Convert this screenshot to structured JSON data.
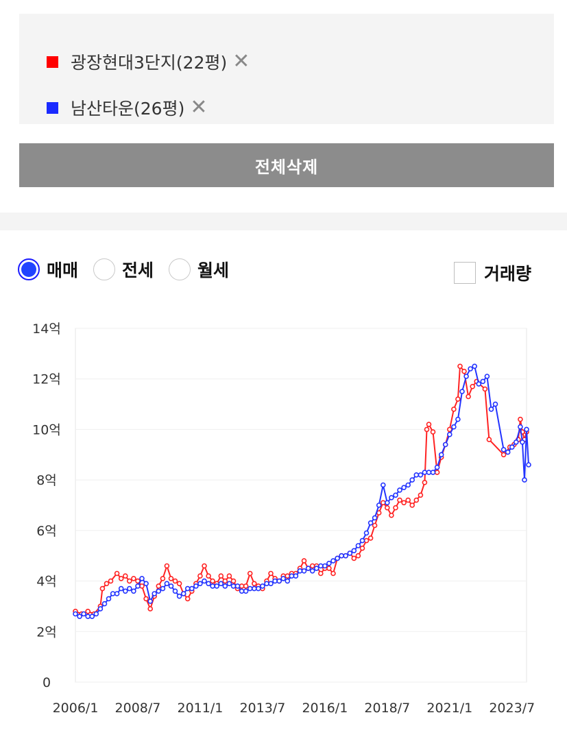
{
  "legend": {
    "items": [
      {
        "label": "광장현대3단지(22평)",
        "color": "#ff0000",
        "close_icon": "close-icon"
      },
      {
        "label": "남산타운(26평)",
        "color": "#1a2aff",
        "close_icon": "close-icon"
      }
    ]
  },
  "delete_all_label": "전체삭제",
  "trade_types": {
    "options": [
      "매매",
      "전세",
      "월세"
    ],
    "selected": "매매"
  },
  "volume_label": "거래량",
  "chart_data": {
    "type": "line",
    "xlabel": "",
    "ylabel": "",
    "x_ticks": [
      "2006/1",
      "2008/7",
      "2011/1",
      "2013/7",
      "2016/1",
      "2018/7",
      "2021/1",
      "2023/7"
    ],
    "y_ticks": [
      "0",
      "2억",
      "4억",
      "6억",
      "8억",
      "10억",
      "12억",
      "14억"
    ],
    "ylim": [
      0,
      14
    ],
    "xlim": [
      "2006/1",
      "2024/2"
    ],
    "grid": true,
    "y_unit": "억",
    "series": [
      {
        "name": "광장현대3단지(22평)",
        "color": "#ff2222",
        "points": [
          [
            "2006/1",
            2.8
          ],
          [
            "2006/4",
            2.7
          ],
          [
            "2006/7",
            2.8
          ],
          [
            "2006/10",
            2.7
          ],
          [
            "2007/1",
            3.0
          ],
          [
            "2007/2",
            3.7
          ],
          [
            "2007/4",
            3.9
          ],
          [
            "2007/6",
            4.0
          ],
          [
            "2007/9",
            4.3
          ],
          [
            "2007/11",
            4.1
          ],
          [
            "2008/1",
            4.2
          ],
          [
            "2008/3",
            4.0
          ],
          [
            "2008/5",
            4.1
          ],
          [
            "2008/7",
            4.0
          ],
          [
            "2008/9",
            3.8
          ],
          [
            "2008/11",
            3.3
          ],
          [
            "2009/1",
            2.9
          ],
          [
            "2009/3",
            3.4
          ],
          [
            "2009/5",
            3.8
          ],
          [
            "2009/7",
            4.1
          ],
          [
            "2009/9",
            4.6
          ],
          [
            "2009/11",
            4.1
          ],
          [
            "2010/1",
            4.0
          ],
          [
            "2010/3",
            3.9
          ],
          [
            "2010/5",
            3.5
          ],
          [
            "2010/7",
            3.3
          ],
          [
            "2010/9",
            3.6
          ],
          [
            "2010/11",
            3.9
          ],
          [
            "2011/1",
            4.2
          ],
          [
            "2011/3",
            4.6
          ],
          [
            "2011/5",
            4.2
          ],
          [
            "2011/7",
            4.0
          ],
          [
            "2011/9",
            3.9
          ],
          [
            "2011/11",
            4.2
          ],
          [
            "2012/1",
            4.0
          ],
          [
            "2012/3",
            4.2
          ],
          [
            "2012/5",
            4.0
          ],
          [
            "2012/7",
            3.7
          ],
          [
            "2012/9",
            3.8
          ],
          [
            "2012/11",
            3.8
          ],
          [
            "2013/1",
            4.3
          ],
          [
            "2013/3",
            3.9
          ],
          [
            "2013/5",
            3.8
          ],
          [
            "2013/7",
            3.7
          ],
          [
            "2013/9",
            4.0
          ],
          [
            "2013/11",
            4.3
          ],
          [
            "2014/1",
            4.1
          ],
          [
            "2014/3",
            4.0
          ],
          [
            "2014/5",
            4.2
          ],
          [
            "2014/7",
            4.2
          ],
          [
            "2014/9",
            4.3
          ],
          [
            "2014/11",
            4.3
          ],
          [
            "2015/1",
            4.5
          ],
          [
            "2015/3",
            4.8
          ],
          [
            "2015/5",
            4.5
          ],
          [
            "2015/7",
            4.6
          ],
          [
            "2015/9",
            4.6
          ],
          [
            "2015/11",
            4.3
          ],
          [
            "2016/1",
            4.5
          ],
          [
            "2016/3",
            4.5
          ],
          [
            "2016/5",
            4.3
          ],
          [
            "2016/7",
            4.9
          ],
          [
            "2016/9",
            5.0
          ],
          [
            "2016/11",
            5.0
          ],
          [
            "2017/1",
            5.1
          ],
          [
            "2017/3",
            4.9
          ],
          [
            "2017/5",
            5.0
          ],
          [
            "2017/7",
            5.3
          ],
          [
            "2017/9",
            5.6
          ],
          [
            "2017/11",
            5.7
          ],
          [
            "2018/1",
            6.2
          ],
          [
            "2018/3",
            6.7
          ],
          [
            "2018/5",
            7.1
          ],
          [
            "2018/7",
            6.9
          ],
          [
            "2018/9",
            6.6
          ],
          [
            "2018/11",
            6.9
          ],
          [
            "2019/1",
            7.2
          ],
          [
            "2019/3",
            7.1
          ],
          [
            "2019/5",
            7.2
          ],
          [
            "2019/7",
            7.0
          ],
          [
            "2019/9",
            7.2
          ],
          [
            "2019/11",
            7.4
          ],
          [
            "2020/1",
            7.9
          ],
          [
            "2020/2",
            10.0
          ],
          [
            "2020/3",
            10.2
          ],
          [
            "2020/5",
            9.9
          ],
          [
            "2020/7",
            8.3
          ],
          [
            "2020/9",
            8.9
          ],
          [
            "2020/11",
            9.4
          ],
          [
            "2021/1",
            10.0
          ],
          [
            "2021/3",
            10.8
          ],
          [
            "2021/5",
            11.2
          ],
          [
            "2021/6",
            12.5
          ],
          [
            "2021/8",
            12.3
          ],
          [
            "2021/10",
            11.3
          ],
          [
            "2021/12",
            11.7
          ],
          [
            "2022/2",
            11.9
          ],
          [
            "2022/6",
            11.6
          ],
          [
            "2022/8",
            9.6
          ],
          [
            "2023/3",
            9.0
          ],
          [
            "2023/6",
            9.3
          ],
          [
            "2023/8",
            9.4
          ],
          [
            "2023/10",
            9.6
          ],
          [
            "2023/11",
            10.4
          ],
          [
            "2023/12",
            9.9
          ],
          [
            "2024/1",
            9.6
          ],
          [
            "2024/2",
            9.9
          ]
        ]
      },
      {
        "name": "남산타운(26평)",
        "color": "#2233ff",
        "points": [
          [
            "2006/1",
            2.7
          ],
          [
            "2006/3",
            2.6
          ],
          [
            "2006/5",
            2.7
          ],
          [
            "2006/7",
            2.6
          ],
          [
            "2006/9",
            2.6
          ],
          [
            "2006/11",
            2.7
          ],
          [
            "2007/1",
            2.9
          ],
          [
            "2007/3",
            3.1
          ],
          [
            "2007/5",
            3.3
          ],
          [
            "2007/7",
            3.5
          ],
          [
            "2007/9",
            3.5
          ],
          [
            "2007/11",
            3.7
          ],
          [
            "2008/1",
            3.6
          ],
          [
            "2008/3",
            3.7
          ],
          [
            "2008/5",
            3.6
          ],
          [
            "2008/7",
            3.8
          ],
          [
            "2008/9",
            4.1
          ],
          [
            "2008/11",
            3.9
          ],
          [
            "2009/1",
            3.2
          ],
          [
            "2009/3",
            3.5
          ],
          [
            "2009/5",
            3.6
          ],
          [
            "2009/7",
            3.7
          ],
          [
            "2009/9",
            3.9
          ],
          [
            "2009/11",
            3.8
          ],
          [
            "2010/1",
            3.6
          ],
          [
            "2010/3",
            3.4
          ],
          [
            "2010/5",
            3.5
          ],
          [
            "2010/7",
            3.7
          ],
          [
            "2010/9",
            3.7
          ],
          [
            "2010/11",
            3.8
          ],
          [
            "2011/1",
            3.9
          ],
          [
            "2011/3",
            4.0
          ],
          [
            "2011/5",
            3.9
          ],
          [
            "2011/7",
            3.8
          ],
          [
            "2011/9",
            3.8
          ],
          [
            "2011/11",
            3.9
          ],
          [
            "2012/1",
            3.8
          ],
          [
            "2012/3",
            3.9
          ],
          [
            "2012/5",
            3.8
          ],
          [
            "2012/7",
            3.8
          ],
          [
            "2012/9",
            3.6
          ],
          [
            "2012/11",
            3.6
          ],
          [
            "2013/1",
            3.7
          ],
          [
            "2013/3",
            3.7
          ],
          [
            "2013/5",
            3.7
          ],
          [
            "2013/7",
            3.8
          ],
          [
            "2013/9",
            3.9
          ],
          [
            "2013/11",
            3.9
          ],
          [
            "2014/1",
            4.0
          ],
          [
            "2014/3",
            4.0
          ],
          [
            "2014/5",
            4.1
          ],
          [
            "2014/7",
            4.0
          ],
          [
            "2014/9",
            4.2
          ],
          [
            "2014/11",
            4.2
          ],
          [
            "2015/1",
            4.4
          ],
          [
            "2015/3",
            4.4
          ],
          [
            "2015/5",
            4.5
          ],
          [
            "2015/7",
            4.4
          ],
          [
            "2015/9",
            4.5
          ],
          [
            "2015/11",
            4.6
          ],
          [
            "2016/1",
            4.6
          ],
          [
            "2016/3",
            4.7
          ],
          [
            "2016/5",
            4.8
          ],
          [
            "2016/7",
            4.9
          ],
          [
            "2016/9",
            5.0
          ],
          [
            "2016/11",
            5.0
          ],
          [
            "2017/1",
            5.1
          ],
          [
            "2017/3",
            5.2
          ],
          [
            "2017/5",
            5.4
          ],
          [
            "2017/7",
            5.6
          ],
          [
            "2017/9",
            5.9
          ],
          [
            "2017/11",
            6.3
          ],
          [
            "2018/1",
            6.5
          ],
          [
            "2018/3",
            7.0
          ],
          [
            "2018/5",
            7.8
          ],
          [
            "2018/7",
            7.1
          ],
          [
            "2018/9",
            7.3
          ],
          [
            "2018/11",
            7.4
          ],
          [
            "2019/1",
            7.6
          ],
          [
            "2019/3",
            7.7
          ],
          [
            "2019/5",
            7.8
          ],
          [
            "2019/7",
            8.0
          ],
          [
            "2019/9",
            8.2
          ],
          [
            "2019/11",
            8.2
          ],
          [
            "2020/1",
            8.3
          ],
          [
            "2020/3",
            8.3
          ],
          [
            "2020/5",
            8.3
          ],
          [
            "2020/7",
            8.5
          ],
          [
            "2020/9",
            9.0
          ],
          [
            "2020/11",
            9.4
          ],
          [
            "2021/1",
            9.8
          ],
          [
            "2021/3",
            10.1
          ],
          [
            "2021/5",
            10.4
          ],
          [
            "2021/7",
            11.5
          ],
          [
            "2021/9",
            12.1
          ],
          [
            "2021/11",
            12.4
          ],
          [
            "2022/1",
            12.5
          ],
          [
            "2022/3",
            11.8
          ],
          [
            "2022/5",
            11.9
          ],
          [
            "2022/7",
            12.1
          ],
          [
            "2022/9",
            10.8
          ],
          [
            "2022/11",
            11.0
          ],
          [
            "2023/3",
            9.2
          ],
          [
            "2023/5",
            9.1
          ],
          [
            "2023/7",
            9.3
          ],
          [
            "2023/9",
            9.5
          ],
          [
            "2023/11",
            10.1
          ],
          [
            "2023/12",
            9.5
          ],
          [
            "2024/1",
            8.0
          ],
          [
            "2024/2",
            10.0
          ],
          [
            "2024/3",
            8.6
          ]
        ]
      }
    ]
  }
}
